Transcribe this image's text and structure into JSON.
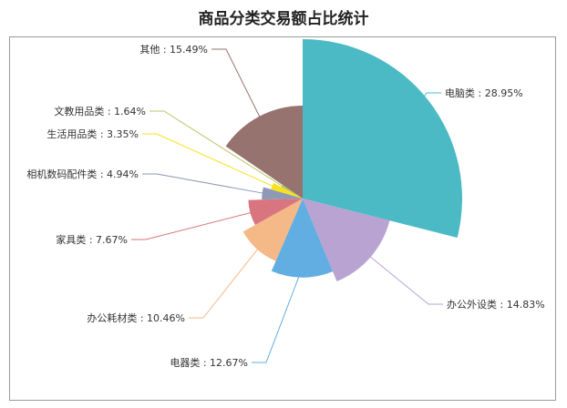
{
  "chart_data": {
    "type": "pie",
    "variant": "rose",
    "title": "商品分类交易额占比统计",
    "slices": [
      {
        "name": "电脑类",
        "value": 28.95,
        "label": "电脑类 : 28.95%",
        "color": "#4bbac4"
      },
      {
        "name": "办公外设类",
        "value": 14.83,
        "label": "办公外设类 : 14.83%",
        "color": "#b8a3d2"
      },
      {
        "name": "电器类",
        "value": 12.67,
        "label": "电器类 : 12.67%",
        "color": "#62aee2"
      },
      {
        "name": "办公耗材类",
        "value": 10.46,
        "label": "办公耗材类 : 10.46%",
        "color": "#f5b887"
      },
      {
        "name": "家具类",
        "value": 7.67,
        "label": "家具类 : 7.67%",
        "color": "#d9757e"
      },
      {
        "name": "相机数码配件类",
        "value": 4.94,
        "label": "相机数码配件类 : 4.94%",
        "color": "#8f98b5"
      },
      {
        "name": "生活用品类",
        "value": 3.35,
        "label": "生活用品类 : 3.35%",
        "color": "#f6e21c"
      },
      {
        "name": "文教用品类",
        "value": 1.64,
        "label": "文教用品类 : 1.64%",
        "color": "#bec56a"
      },
      {
        "name": "其他",
        "value": 15.49,
        "label": "其他 : 15.49%",
        "color": "#96736f"
      }
    ]
  }
}
